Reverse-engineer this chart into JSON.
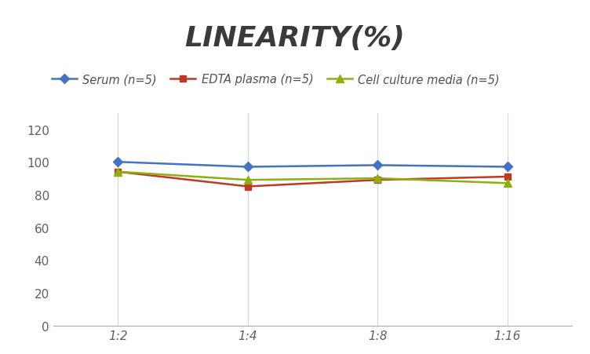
{
  "title": "LINEARITY(%)",
  "x_labels": [
    "1:2",
    "1:4",
    "1:8",
    "1:16"
  ],
  "x_positions": [
    0,
    1,
    2,
    3
  ],
  "series": [
    {
      "label": "Serum (n=5)",
      "values": [
        100,
        97,
        98,
        97
      ],
      "color": "#4472C4",
      "marker": "D",
      "marker_color": "#4472C4",
      "linewidth": 1.8,
      "markersize": 6
    },
    {
      "label": "EDTA plasma (n=5)",
      "values": [
        94,
        85,
        89,
        91
      ],
      "color": "#BE3A25",
      "marker": "s",
      "marker_color": "#BE3A25",
      "linewidth": 1.8,
      "markersize": 6
    },
    {
      "label": "Cell culture media (n=5)",
      "values": [
        94,
        89,
        90,
        87
      ],
      "color": "#8DB010",
      "marker": "^",
      "marker_color": "#8DB010",
      "linewidth": 1.8,
      "markersize": 7
    }
  ],
  "ylim": [
    0,
    130
  ],
  "yticks": [
    0,
    20,
    40,
    60,
    80,
    100,
    120
  ],
  "grid_color": "#D8D8D8",
  "background_color": "#FFFFFF",
  "title_fontsize": 26,
  "title_style": "italic",
  "title_weight": "bold",
  "legend_fontsize": 10.5,
  "tick_fontsize": 11,
  "title_color": "#3A3A3A"
}
